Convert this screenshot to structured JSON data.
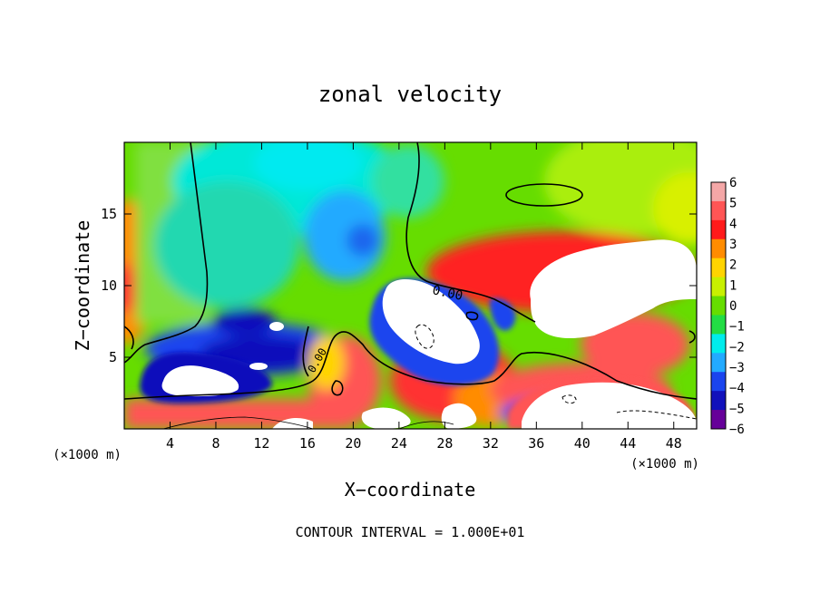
{
  "chart_data": {
    "type": "heatmap",
    "title": "zonal velocity",
    "xlabel": "X−coordinate",
    "ylabel": "Z−coordinate",
    "x_unit_left": "(×1000 m)",
    "x_unit_right": "(×1000 m)",
    "footer": "CONTOUR INTERVAL = 1.000E+01",
    "contour_label": "0.00",
    "xlim": [
      0,
      50
    ],
    "ylim": [
      0,
      20
    ],
    "x_ticks": [
      4,
      8,
      12,
      16,
      20,
      24,
      28,
      32,
      36,
      40,
      44,
      48
    ],
    "x_tick_labels": [
      "4",
      "8",
      "12",
      "16",
      "20",
      "24",
      "28",
      "32",
      "36",
      "40",
      "44",
      "48"
    ],
    "y_ticks": [
      5,
      10,
      15
    ],
    "y_tick_labels": [
      "5",
      "10",
      "15"
    ],
    "colorbar": {
      "min": -6,
      "max": 6,
      "labels": [
        "6",
        "5",
        "4",
        "3",
        "2",
        "1",
        "0",
        "−1",
        "−2",
        "−3",
        "−4",
        "−5",
        "−6"
      ],
      "colors": [
        "#f4a7a7",
        "#ff5555",
        "#ff1a1a",
        "#ff8c00",
        "#ffd400",
        "#c8f000",
        "#66dd00",
        "#22dd44",
        "#00ecec",
        "#22aaff",
        "#1a44ee",
        "#1111bb",
        "#660099"
      ]
    }
  }
}
